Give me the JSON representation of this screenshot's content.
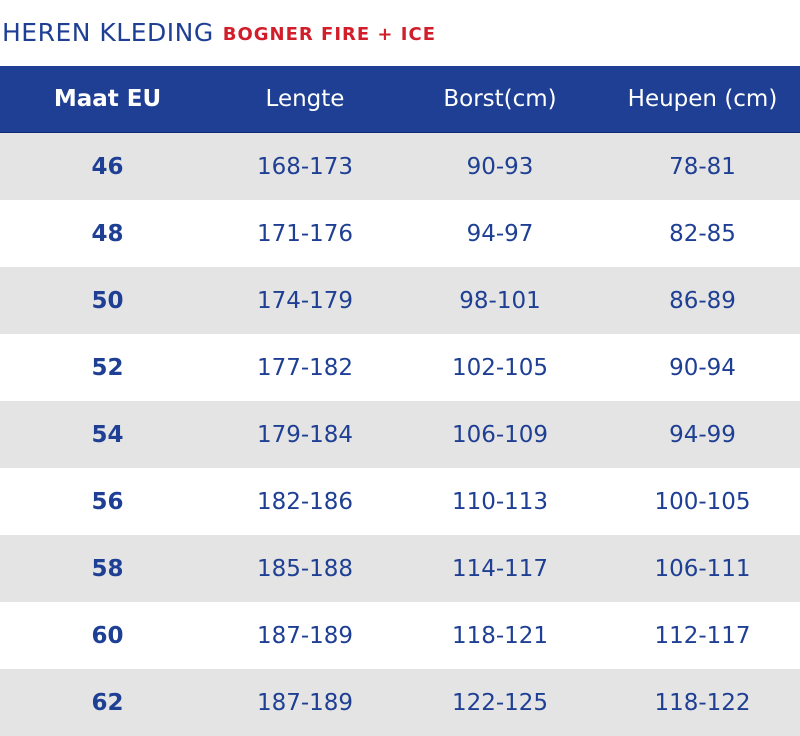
{
  "header": {
    "title": "HEREN KLEDING",
    "subtitle": "BOGNER FIRE + ICE"
  },
  "colors": {
    "primary_blue": "#1e3f93",
    "accent_red": "#d21e2b",
    "row_gray": "#e4e4e4"
  },
  "table": {
    "columns": [
      "Maat EU",
      "Lengte",
      "Borst(cm)",
      "Heupen (cm)"
    ],
    "rows": [
      [
        "46",
        "168-173",
        "90-93",
        "78-81"
      ],
      [
        "48",
        "171-176",
        "94-97",
        "82-85"
      ],
      [
        "50",
        "174-179",
        "98-101",
        "86-89"
      ],
      [
        "52",
        "177-182",
        "102-105",
        "90-94"
      ],
      [
        "54",
        "179-184",
        "106-109",
        "94-99"
      ],
      [
        "56",
        "182-186",
        "110-113",
        "100-105"
      ],
      [
        "58",
        "185-188",
        "114-117",
        "106-111"
      ],
      [
        "60",
        "187-189",
        "118-121",
        "112-117"
      ],
      [
        "62",
        "187-189",
        "122-125",
        "118-122"
      ]
    ]
  }
}
